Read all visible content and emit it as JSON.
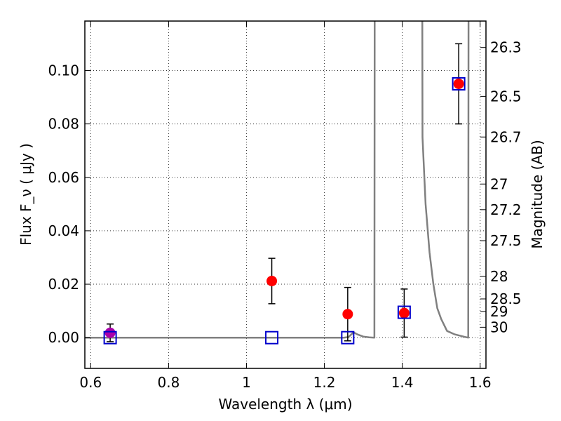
{
  "chart_data": {
    "type": "scatter",
    "xlabel": "Wavelength  λ (μm)",
    "ylabel": "Flux  F_ν  ( μJy )",
    "ylabel_right": "Magnitude (AB)",
    "xlim": [
      0.585,
      1.615
    ],
    "ylim": [
      -0.0115,
      0.1185
    ],
    "grid": true,
    "x_ticks": [
      {
        "value": 0.6,
        "label": "0.6"
      },
      {
        "value": 0.8,
        "label": "0.8"
      },
      {
        "value": 1.0,
        "label": "1"
      },
      {
        "value": 1.2,
        "label": "1.2"
      },
      {
        "value": 1.4,
        "label": "1.4"
      },
      {
        "value": 1.6,
        "label": "1.6"
      }
    ],
    "y_ticks": [
      {
        "value": 0.0,
        "label": "0.00"
      },
      {
        "value": 0.02,
        "label": "0.02"
      },
      {
        "value": 0.04,
        "label": "0.04"
      },
      {
        "value": 0.06,
        "label": "0.06"
      },
      {
        "value": 0.08,
        "label": "0.08"
      },
      {
        "value": 0.1,
        "label": "0.10"
      }
    ],
    "magnitude_ticks": [
      {
        "flux": 0.1086,
        "label": "26.3"
      },
      {
        "flux": 0.0903,
        "label": "26.5"
      },
      {
        "flux": 0.0751,
        "label": "26.7"
      },
      {
        "flux": 0.0575,
        "label": "27"
      },
      {
        "flux": 0.0479,
        "label": "27.2"
      },
      {
        "flux": 0.0363,
        "label": "27.5"
      },
      {
        "flux": 0.0229,
        "label": "28"
      },
      {
        "flux": 0.0145,
        "label": "28.5"
      },
      {
        "flux": 0.0098,
        "label": "29"
      },
      {
        "flux": 0.0039,
        "label": "30"
      }
    ],
    "series": [
      {
        "marker": "circle",
        "color": "#ff0000",
        "points": [
          {
            "x": 1.065,
            "y": 0.0212,
            "err": 0.0085
          },
          {
            "x": 1.26,
            "y": 0.0088,
            "err": 0.01
          },
          {
            "x": 1.405,
            "y": 0.0092,
            "err": 0.009
          },
          {
            "x": 1.545,
            "y": 0.095,
            "err": 0.015
          }
        ]
      },
      {
        "marker": "circle",
        "color": "#aa00aa",
        "points": [
          {
            "x": 0.65,
            "y": 0.0018,
            "err": 0.0033
          }
        ]
      },
      {
        "marker": "square",
        "color": "#0000cc",
        "points": [
          {
            "x": 0.65,
            "y": 0.0
          },
          {
            "x": 1.065,
            "y": 0.0
          },
          {
            "x": 1.26,
            "y": 0.0
          },
          {
            "x": 1.405,
            "y": 0.0095
          },
          {
            "x": 1.545,
            "y": 0.095
          }
        ]
      }
    ],
    "model_curve": {
      "color": "#808080",
      "points": [
        [
          0.585,
          0.0
        ],
        [
          1.25,
          0.0
        ],
        [
          1.262,
          0.00025
        ],
        [
          1.275,
          0.002
        ],
        [
          1.285,
          0.0012
        ],
        [
          1.3,
          0.0004
        ],
        [
          1.315,
          0.0001
        ],
        [
          1.3285,
          0.0
        ],
        [
          1.33,
          0.25
        ],
        [
          1.45,
          0.25
        ],
        [
          1.452,
          0.075
        ],
        [
          1.46,
          0.05
        ],
        [
          1.47,
          0.032
        ],
        [
          1.48,
          0.02
        ],
        [
          1.49,
          0.011
        ],
        [
          1.5,
          0.007
        ],
        [
          1.515,
          0.0025
        ],
        [
          1.535,
          0.0012
        ],
        [
          1.56,
          0.0003
        ],
        [
          1.5695,
          0.0
        ],
        [
          1.571,
          0.25
        ]
      ]
    }
  }
}
